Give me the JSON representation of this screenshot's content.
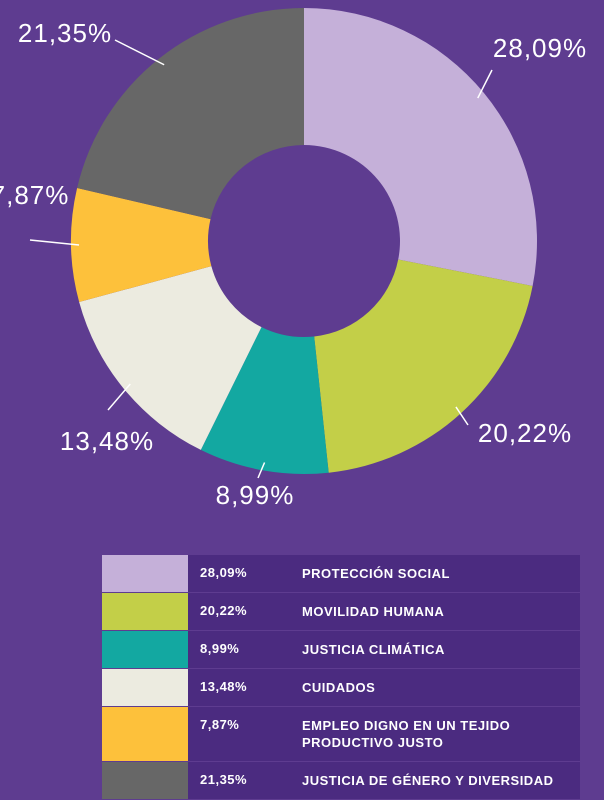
{
  "chart_data": {
    "type": "donut",
    "categories": [
      "PROTECCIÓN SOCIAL",
      "MOVILIDAD HUMANA",
      "JUSTICIA CLIMÁTICA",
      "CUIDADOS",
      "EMPLEO DIGNO EN UN TEJIDO PRODUCTIVO JUSTO",
      "JUSTICIA DE GÉNERO Y DIVERSIDAD"
    ],
    "values": [
      28.09,
      20.22,
      8.99,
      13.48,
      7.87,
      21.35
    ],
    "value_labels": [
      "28,09%",
      "20,22%",
      "8,99%",
      "13,48%",
      "7,87%",
      "21,35%"
    ],
    "colors": [
      "#c5b0d9",
      "#c3cf48",
      "#13a8a1",
      "#ecebe0",
      "#fdc13b",
      "#676767"
    ]
  }
}
